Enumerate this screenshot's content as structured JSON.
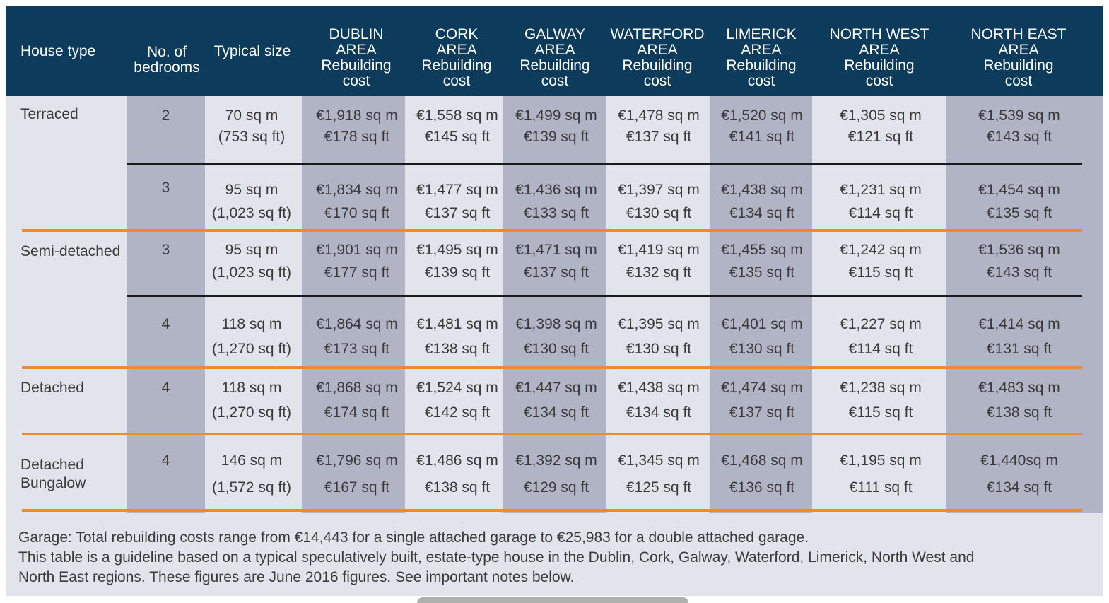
{
  "header": {
    "house_type": "House type",
    "bedrooms": "No. of\nbedrooms",
    "typical_size": "Typical size",
    "areas": [
      "DUBLIN\nAREA\nRebuilding\ncost",
      "CORK\nAREA\nRebuilding\ncost",
      "GALWAY\nAREA\nRebuilding\ncost",
      "WATERFORD\nAREA\nRebuilding\ncost",
      "LIMERICK\nAREA\nRebuilding\ncost",
      "NORTH WEST\nAREA\nRebuilding\ncost",
      "NORTH EAST\nAREA\nRebuilding\ncost"
    ]
  },
  "house_types": [
    "Terraced",
    "Semi-detached",
    "Detached",
    "Detached\nBungalow"
  ],
  "rows": [
    {
      "bedrooms": "2",
      "size_m": "70 sq m",
      "size_ft": "(753 sq ft)",
      "costs": [
        [
          "€1,918 sq m",
          "€178 sq ft"
        ],
        [
          "€1,558 sq m",
          "€145 sq ft"
        ],
        [
          "€1,499 sq m",
          "€139 sq ft"
        ],
        [
          "€1,478 sq m",
          "€137 sq ft"
        ],
        [
          "€1,520 sq m",
          "€141 sq ft"
        ],
        [
          "€1,305 sq m",
          "€121 sq ft"
        ],
        [
          "€1,539 sq m",
          "€143 sq ft"
        ]
      ]
    },
    {
      "bedrooms": "3",
      "size_m": "95 sq m",
      "size_ft": "(1,023 sq ft)",
      "costs": [
        [
          "€1,834 sq m",
          "€170 sq ft"
        ],
        [
          "€1,477 sq m",
          "€137 sq ft"
        ],
        [
          "€1,436 sq m",
          "€133 sq ft"
        ],
        [
          "€1,397 sq m",
          "€130 sq ft"
        ],
        [
          "€1,438 sq m",
          "€134 sq ft"
        ],
        [
          "€1,231 sq m",
          "€114 sq ft"
        ],
        [
          "€1,454 sq m",
          "€135 sq ft"
        ]
      ]
    },
    {
      "bedrooms": "3",
      "size_m": "95 sq m",
      "size_ft": "(1,023 sq ft)",
      "costs": [
        [
          "€1,901 sq m",
          "€177 sq ft"
        ],
        [
          "€1,495 sq m",
          "€139 sq ft"
        ],
        [
          "€1,471 sq m",
          "€137 sq ft"
        ],
        [
          "€1,419 sq m",
          "€132 sq ft"
        ],
        [
          "€1,455 sq m",
          "€135 sq ft"
        ],
        [
          "€1,242 sq m",
          "€115 sq ft"
        ],
        [
          "€1,536 sq m",
          "€143 sq ft"
        ]
      ]
    },
    {
      "bedrooms": "4",
      "size_m": "118 sq m",
      "size_ft": "(1,270 sq ft)",
      "costs": [
        [
          "€1,864 sq m",
          "€173 sq ft"
        ],
        [
          "€1,481 sq m",
          "€138 sq ft"
        ],
        [
          "€1,398 sq m",
          "€130 sq ft"
        ],
        [
          "€1,395 sq m",
          "€130 sq ft"
        ],
        [
          "€1,401 sq m",
          "€130 sq ft"
        ],
        [
          "€1,227 sq m",
          "€114 sq ft"
        ],
        [
          "€1,414 sq m",
          "€131 sq ft"
        ]
      ]
    },
    {
      "bedrooms": "4",
      "size_m": "118 sq m",
      "size_ft": "(1,270 sq ft)",
      "costs": [
        [
          "€1,868 sq m",
          "€174 sq ft"
        ],
        [
          "€1,524 sq m",
          "€142 sq ft"
        ],
        [
          "€1,447 sq m",
          "€134 sq ft"
        ],
        [
          "€1,438 sq m",
          "€134 sq ft"
        ],
        [
          "€1,474 sq m",
          "€137 sq ft"
        ],
        [
          "€1,238 sq m",
          "€115 sq ft"
        ],
        [
          "€1,483 sq m",
          "€138 sq ft"
        ]
      ]
    },
    {
      "bedrooms": "4",
      "size_m": "146 sq m",
      "size_ft": "(1,572 sq ft)",
      "costs": [
        [
          "€1,796 sq m",
          "€167 sq ft"
        ],
        [
          "€1,486 sq m",
          "€138 sq ft"
        ],
        [
          "€1,392 sq m",
          "€129 sq ft"
        ],
        [
          "€1,345 sq m",
          "€125 sq ft"
        ],
        [
          "€1,468 sq m",
          "€136 sq ft"
        ],
        [
          "€1,195 sq m",
          "€111 sq ft"
        ],
        [
          "€1,440sq m",
          "€134 sq ft"
        ]
      ]
    }
  ],
  "footer": {
    "line1": "Garage: Total rebuilding costs range from €14,443 for a single attached garage to €25,983 for a double attached garage.",
    "line2": "This table is a guideline based on a typical speculatively built, estate-type house in the Dublin, Cork, Galway, Waterford, Limerick, North West and",
    "line3": "North East regions. These figures are June 2016 figures. See important notes below."
  },
  "colors": {
    "header_bg": "#0d3b5c",
    "dark_col": "#b1b4c5",
    "light_col": "#e2e4eb",
    "orange_rule": "#f08a24"
  }
}
